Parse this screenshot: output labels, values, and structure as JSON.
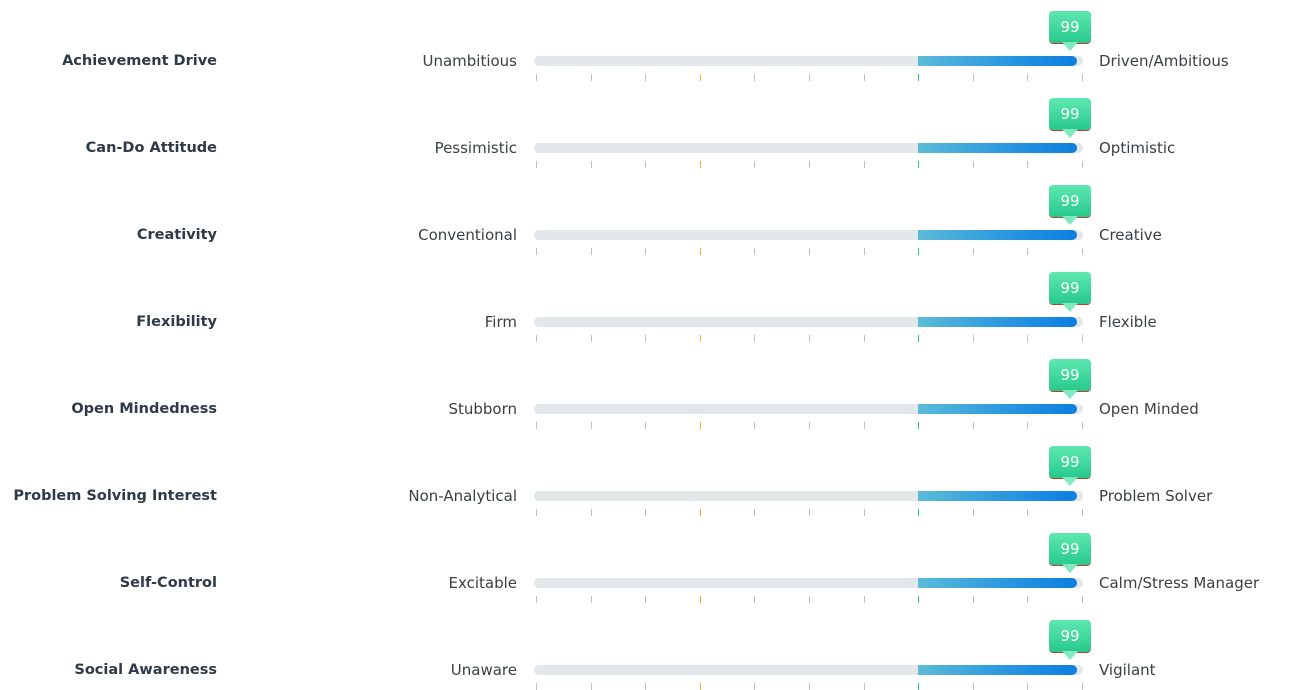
{
  "chart_data": {
    "type": "bar",
    "orientation": "horizontal",
    "scale": [
      0,
      100
    ],
    "tick_count": 11,
    "colors": {
      "track": "#e2e7ea",
      "fill_start": "#5bbbd8",
      "fill_end": "#0b7ee0",
      "marker": "#27c98d",
      "tick_default": "#b9c0c6",
      "tick_warning": "#f2b233",
      "tick_good": "#2dc3a0"
    },
    "reference_ticks": [
      {
        "position": 30,
        "kind": "warning"
      },
      {
        "position": 70,
        "kind": "good"
      }
    ],
    "rows": [
      {
        "trait": "Achievement Drive",
        "low": "Unambitious",
        "high": "Driven/Ambitious",
        "value": 99,
        "fill_start": 70
      },
      {
        "trait": "Can-Do Attitude",
        "low": "Pessimistic",
        "high": "Optimistic",
        "value": 99,
        "fill_start": 70
      },
      {
        "trait": "Creativity",
        "low": "Conventional",
        "high": "Creative",
        "value": 99,
        "fill_start": 70
      },
      {
        "trait": "Flexibility",
        "low": "Firm",
        "high": "Flexible",
        "value": 99,
        "fill_start": 70
      },
      {
        "trait": "Open Mindedness",
        "low": "Stubborn",
        "high": "Open Minded",
        "value": 99,
        "fill_start": 70
      },
      {
        "trait": "Problem Solving Interest",
        "low": "Non-Analytical",
        "high": "Problem Solver",
        "value": 99,
        "fill_start": 70
      },
      {
        "trait": "Self-Control",
        "low": "Excitable",
        "high": "Calm/Stress Manager",
        "value": 99,
        "fill_start": 70
      },
      {
        "trait": "Social Awareness",
        "low": "Unaware",
        "high": "Vigilant",
        "value": 99,
        "fill_start": 70
      }
    ]
  }
}
